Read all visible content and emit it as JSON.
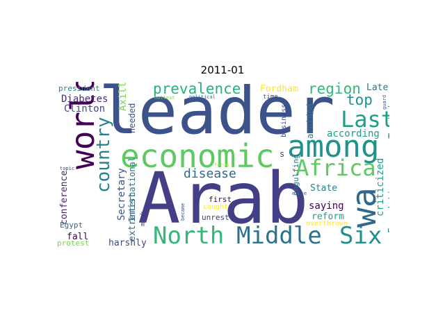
{
  "title": "2011-01",
  "words": [
    {
      "text": "leader",
      "color": "#3b528b"
    },
    {
      "text": "Arab",
      "color": "#433e85"
    },
    {
      "text": "among",
      "color": "#21918c"
    },
    {
      "text": "economic",
      "color": "#5ec962"
    },
    {
      "text": "world",
      "color": "#440154"
    },
    {
      "text": "North",
      "color": "#35b779"
    },
    {
      "text": "Middle",
      "color": "#2c728e"
    },
    {
      "text": "Six",
      "color": "#21908d"
    },
    {
      "text": "Africa",
      "color": "#5ec962"
    },
    {
      "text": "Last",
      "color": "#1f9e89"
    },
    {
      "text": "wa",
      "color": "#31688e"
    },
    {
      "text": "country",
      "color": "#26828e"
    },
    {
      "text": "prevalence",
      "color": "#29af7f"
    },
    {
      "text": "region",
      "color": "#35b779"
    },
    {
      "text": "top",
      "color": "#218f8d"
    },
    {
      "text": "disease",
      "color": "#31688e"
    },
    {
      "text": "Diabetes",
      "color": "#472c7a"
    },
    {
      "text": "Clinton",
      "color": "#3e4a89"
    },
    {
      "text": "president",
      "color": "#26828e"
    },
    {
      "text": "Axillary",
      "color": "#7ad151"
    },
    {
      "text": "needed",
      "color": "#3b528b"
    },
    {
      "text": "International",
      "color": "#2a788e"
    },
    {
      "text": "Secretary",
      "color": "#3b528b"
    },
    {
      "text": "extremist",
      "color": "#31688e"
    },
    {
      "text": "conference",
      "color": "#482475"
    },
    {
      "text": "fall",
      "color": "#440154"
    },
    {
      "text": "Egypt",
      "color": "#31688e"
    },
    {
      "text": "protest",
      "color": "#7ad151"
    },
    {
      "text": "harshly",
      "color": "#3e4a89"
    },
    {
      "text": "mark",
      "color": "#414487"
    },
    {
      "text": "became",
      "color": "#3b528b"
    },
    {
      "text": "topic",
      "color": "#443983"
    },
    {
      "text": "hottest",
      "color": "#73d056"
    },
    {
      "text": "political",
      "color": "#31688e"
    },
    {
      "text": "forum",
      "color": "#b5de2b"
    },
    {
      "text": "Fordham",
      "color": "#fde725"
    },
    {
      "text": "Later",
      "color": "#2a788e"
    },
    {
      "text": "time",
      "color": "#3e4a89"
    },
    {
      "text": "business",
      "color": "#3e4a89"
    },
    {
      "text": "guard",
      "color": "#3b528b"
    },
    {
      "text": "Tunisia",
      "color": "#2c728e"
    },
    {
      "text": "according",
      "color": "#1f9e89"
    },
    {
      "text": "avoided",
      "color": "#2a788e"
    },
    {
      "text": "s",
      "color": "#433e85"
    },
    {
      "text": "State",
      "color": "#26828e"
    },
    {
      "text": "saying",
      "color": "#440154"
    },
    {
      "text": "reform",
      "color": "#20a386"
    },
    {
      "text": "first",
      "color": "#440154"
    },
    {
      "text": "caught",
      "color": "#fde725"
    },
    {
      "text": "unrest",
      "color": "#443983"
    },
    {
      "text": "engulfing",
      "color": "#2a788e"
    },
    {
      "text": "elite",
      "color": "#3e4a89"
    },
    {
      "text": "overthrown",
      "color": "#fde725"
    },
    {
      "text": "criticized",
      "color": "#1f9e89"
    },
    {
      "text": "Foundation",
      "color": "#21918c"
    }
  ]
}
